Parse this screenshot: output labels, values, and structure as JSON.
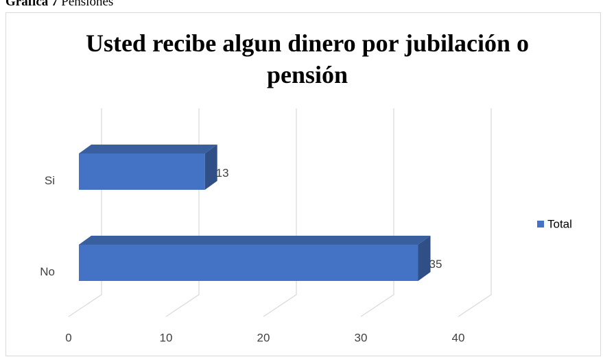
{
  "caption": {
    "label": "Gráfica 7",
    "text": "Pensiones"
  },
  "chart_data": {
    "type": "bar3d_horizontal",
    "title": "Usted recibe algun dinero por jubilación o pensión",
    "categories": [
      "Si",
      "No"
    ],
    "series": [
      {
        "name": "Total",
        "color": "#4472c4",
        "values": [
          13,
          35
        ]
      }
    ],
    "xlim": [
      0,
      40
    ],
    "xticks": [
      0,
      10,
      20,
      30,
      40
    ],
    "grid": true,
    "legend": "right"
  }
}
